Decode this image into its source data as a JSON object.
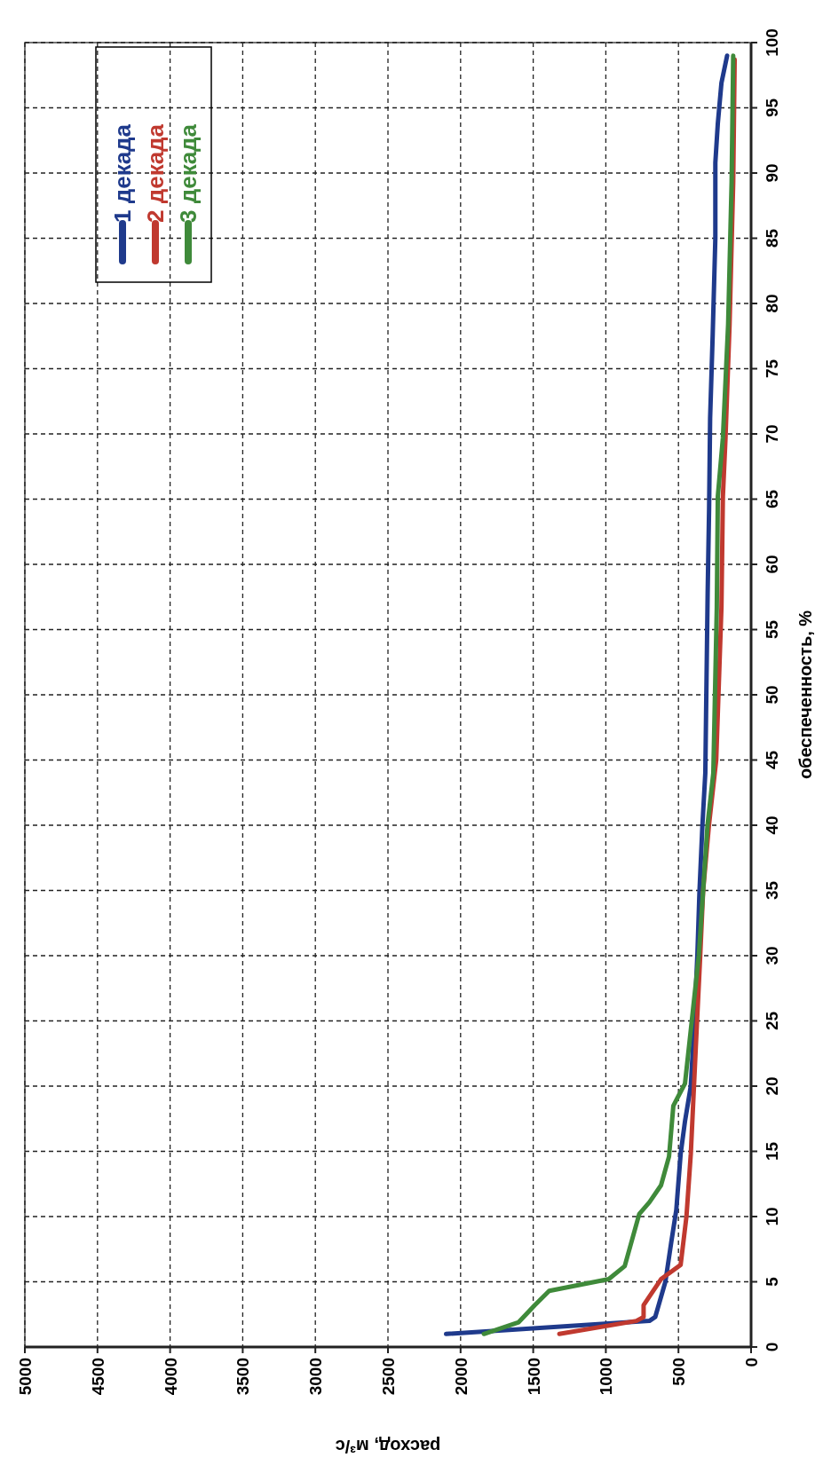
{
  "chart_data": {
    "type": "line",
    "xlabel": "расход, м³/с",
    "ylabel": "обеспеченность, %",
    "xlim": [
      5000,
      0
    ],
    "xticks": [
      5000,
      4500,
      4000,
      3500,
      3000,
      2500,
      2000,
      1500,
      1000,
      500,
      0
    ],
    "ylim": [
      0,
      100
    ],
    "yticks": [
      0,
      5,
      10,
      15,
      20,
      25,
      30,
      35,
      40,
      45,
      50,
      55,
      60,
      65,
      70,
      75,
      80,
      85,
      90,
      95,
      100
    ],
    "grid": true,
    "legend": "top left",
    "marker": "none",
    "line_style": "solid",
    "series": [
      {
        "name": "1 декада",
        "color": "#1f3a8c",
        "values": [
          1,
          2,
          2.3,
          5,
          8,
          10.5,
          14.8,
          17.3,
          20,
          25,
          30,
          35,
          40,
          44,
          48.4,
          57.8,
          64.3,
          71.2,
          77.7,
          85,
          90.8,
          93.8,
          96.9,
          99
        ],
        "x": [
          2100,
          700,
          660,
          590,
          550,
          515,
          485,
          455,
          415,
          390,
          370,
          355,
          335,
          315,
          310,
          299,
          289,
          282,
          264,
          246,
          246,
          229,
          204,
          165
        ]
      },
      {
        "name": "2 декада",
        "color": "#c0392f",
        "values": [
          1,
          2,
          2.3,
          3.2,
          5.2,
          6.3,
          10,
          14.8,
          24.3,
          30,
          35,
          40,
          45,
          56.7,
          65.2,
          69.7,
          78.4,
          89.3,
          98.7
        ],
        "x": [
          1320,
          790,
          740,
          740,
          620,
          485,
          445,
          415,
          375,
          350,
          330,
          290,
          240,
          204,
          194,
          176,
          148,
          123,
          113
        ]
      },
      {
        "name": "3 декада",
        "color": "#3f8a3a",
        "values": [
          1,
          1.9,
          3.2,
          4.3,
          5.2,
          6.2,
          10.2,
          11.1,
          12.4,
          14.6,
          18.5,
          20.2,
          24.3,
          30,
          35,
          40,
          44,
          56.7,
          65.2,
          69.7,
          78.4,
          89.3,
          99
        ],
        "x": [
          1840,
          1600,
          1490,
          1390,
          980,
          870,
          770,
          700,
          620,
          565,
          535,
          455,
          415,
          360,
          330,
          300,
          260,
          236,
          229,
          194,
          158,
          134,
          123
        ]
      }
    ]
  }
}
